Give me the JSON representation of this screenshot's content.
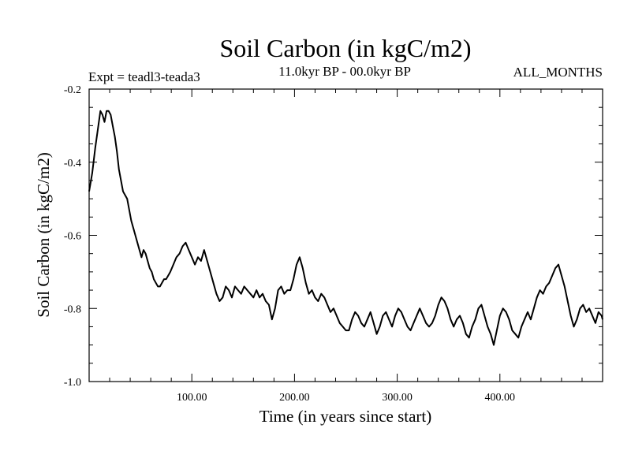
{
  "header": {
    "title": "Soil Carbon (in kgC/m2)",
    "experiment": "Expt = teadl3-teada3",
    "period": "11.0kyr BP - 00.0kyr BP",
    "season": "ALL_MONTHS"
  },
  "chart_data": {
    "type": "line",
    "title": "Soil Carbon (in kgC/m2)",
    "xlabel": "Time (in years since start)",
    "ylabel": "Soil Carbon (in kgC/m2)",
    "xlim": [
      0,
      500
    ],
    "ylim": [
      -1.0,
      -0.2
    ],
    "x_ticks": [
      100,
      200,
      300,
      400
    ],
    "x_tick_labels": [
      "100.00",
      "200.00",
      "300.00",
      "400.00"
    ],
    "y_ticks": [
      -1.0,
      -0.8,
      -0.6,
      -0.4,
      -0.2
    ],
    "y_tick_labels": [
      "-1.0",
      "-0.8",
      "-0.6",
      "-0.4",
      "-0.2"
    ],
    "grid": false,
    "line_color": "#000000",
    "series": [
      {
        "name": "Soil Carbon",
        "points": [
          [
            0,
            -0.48
          ],
          [
            3,
            -0.43
          ],
          [
            6,
            -0.36
          ],
          [
            9,
            -0.3
          ],
          [
            11,
            -0.26
          ],
          [
            13,
            -0.27
          ],
          [
            15,
            -0.29
          ],
          [
            17,
            -0.26
          ],
          [
            19,
            -0.26
          ],
          [
            21,
            -0.27
          ],
          [
            23,
            -0.3
          ],
          [
            25,
            -0.33
          ],
          [
            27,
            -0.37
          ],
          [
            29,
            -0.42
          ],
          [
            31,
            -0.45
          ],
          [
            33,
            -0.48
          ],
          [
            35,
            -0.49
          ],
          [
            37,
            -0.5
          ],
          [
            39,
            -0.53
          ],
          [
            41,
            -0.56
          ],
          [
            43,
            -0.58
          ],
          [
            45,
            -0.6
          ],
          [
            47,
            -0.62
          ],
          [
            49,
            -0.64
          ],
          [
            51,
            -0.66
          ],
          [
            53,
            -0.64
          ],
          [
            55,
            -0.65
          ],
          [
            57,
            -0.67
          ],
          [
            59,
            -0.69
          ],
          [
            61,
            -0.7
          ],
          [
            63,
            -0.72
          ],
          [
            65,
            -0.73
          ],
          [
            67,
            -0.74
          ],
          [
            69,
            -0.74
          ],
          [
            71,
            -0.73
          ],
          [
            73,
            -0.72
          ],
          [
            75,
            -0.72
          ],
          [
            77,
            -0.71
          ],
          [
            79,
            -0.7
          ],
          [
            82,
            -0.68
          ],
          [
            85,
            -0.66
          ],
          [
            88,
            -0.65
          ],
          [
            91,
            -0.63
          ],
          [
            94,
            -0.62
          ],
          [
            97,
            -0.64
          ],
          [
            100,
            -0.66
          ],
          [
            103,
            -0.68
          ],
          [
            106,
            -0.66
          ],
          [
            109,
            -0.67
          ],
          [
            112,
            -0.64
          ],
          [
            115,
            -0.67
          ],
          [
            118,
            -0.7
          ],
          [
            121,
            -0.73
          ],
          [
            124,
            -0.76
          ],
          [
            127,
            -0.78
          ],
          [
            130,
            -0.77
          ],
          [
            133,
            -0.74
          ],
          [
            136,
            -0.75
          ],
          [
            139,
            -0.77
          ],
          [
            142,
            -0.74
          ],
          [
            145,
            -0.75
          ],
          [
            148,
            -0.76
          ],
          [
            151,
            -0.74
          ],
          [
            154,
            -0.75
          ],
          [
            157,
            -0.76
          ],
          [
            160,
            -0.77
          ],
          [
            163,
            -0.75
          ],
          [
            166,
            -0.77
          ],
          [
            169,
            -0.76
          ],
          [
            172,
            -0.78
          ],
          [
            175,
            -0.79
          ],
          [
            178,
            -0.83
          ],
          [
            181,
            -0.8
          ],
          [
            184,
            -0.75
          ],
          [
            187,
            -0.74
          ],
          [
            190,
            -0.76
          ],
          [
            193,
            -0.75
          ],
          [
            196,
            -0.75
          ],
          [
            199,
            -0.72
          ],
          [
            202,
            -0.68
          ],
          [
            205,
            -0.66
          ],
          [
            208,
            -0.69
          ],
          [
            211,
            -0.73
          ],
          [
            214,
            -0.76
          ],
          [
            217,
            -0.75
          ],
          [
            220,
            -0.77
          ],
          [
            223,
            -0.78
          ],
          [
            226,
            -0.76
          ],
          [
            229,
            -0.77
          ],
          [
            232,
            -0.79
          ],
          [
            235,
            -0.81
          ],
          [
            238,
            -0.8
          ],
          [
            241,
            -0.82
          ],
          [
            244,
            -0.84
          ],
          [
            247,
            -0.85
          ],
          [
            250,
            -0.86
          ],
          [
            253,
            -0.86
          ],
          [
            256,
            -0.83
          ],
          [
            259,
            -0.81
          ],
          [
            262,
            -0.82
          ],
          [
            265,
            -0.84
          ],
          [
            268,
            -0.85
          ],
          [
            271,
            -0.83
          ],
          [
            274,
            -0.81
          ],
          [
            277,
            -0.84
          ],
          [
            280,
            -0.87
          ],
          [
            283,
            -0.85
          ],
          [
            286,
            -0.82
          ],
          [
            289,
            -0.81
          ],
          [
            292,
            -0.83
          ],
          [
            295,
            -0.85
          ],
          [
            298,
            -0.82
          ],
          [
            301,
            -0.8
          ],
          [
            304,
            -0.81
          ],
          [
            307,
            -0.83
          ],
          [
            310,
            -0.85
          ],
          [
            313,
            -0.86
          ],
          [
            316,
            -0.84
          ],
          [
            319,
            -0.82
          ],
          [
            322,
            -0.8
          ],
          [
            325,
            -0.82
          ],
          [
            328,
            -0.84
          ],
          [
            331,
            -0.85
          ],
          [
            334,
            -0.84
          ],
          [
            337,
            -0.82
          ],
          [
            340,
            -0.79
          ],
          [
            343,
            -0.77
          ],
          [
            346,
            -0.78
          ],
          [
            349,
            -0.8
          ],
          [
            352,
            -0.83
          ],
          [
            355,
            -0.85
          ],
          [
            358,
            -0.83
          ],
          [
            361,
            -0.82
          ],
          [
            364,
            -0.84
          ],
          [
            367,
            -0.87
          ],
          [
            370,
            -0.88
          ],
          [
            373,
            -0.85
          ],
          [
            376,
            -0.83
          ],
          [
            379,
            -0.8
          ],
          [
            382,
            -0.79
          ],
          [
            385,
            -0.82
          ],
          [
            388,
            -0.85
          ],
          [
            391,
            -0.87
          ],
          [
            394,
            -0.9
          ],
          [
            397,
            -0.86
          ],
          [
            400,
            -0.82
          ],
          [
            403,
            -0.8
          ],
          [
            406,
            -0.81
          ],
          [
            409,
            -0.83
          ],
          [
            412,
            -0.86
          ],
          [
            415,
            -0.87
          ],
          [
            418,
            -0.88
          ],
          [
            421,
            -0.85
          ],
          [
            424,
            -0.83
          ],
          [
            427,
            -0.81
          ],
          [
            430,
            -0.83
          ],
          [
            433,
            -0.8
          ],
          [
            436,
            -0.77
          ],
          [
            439,
            -0.75
          ],
          [
            442,
            -0.76
          ],
          [
            445,
            -0.74
          ],
          [
            448,
            -0.73
          ],
          [
            451,
            -0.71
          ],
          [
            454,
            -0.69
          ],
          [
            457,
            -0.68
          ],
          [
            460,
            -0.71
          ],
          [
            463,
            -0.74
          ],
          [
            466,
            -0.78
          ],
          [
            469,
            -0.82
          ],
          [
            472,
            -0.85
          ],
          [
            475,
            -0.83
          ],
          [
            478,
            -0.8
          ],
          [
            481,
            -0.79
          ],
          [
            484,
            -0.81
          ],
          [
            487,
            -0.8
          ],
          [
            490,
            -0.82
          ],
          [
            493,
            -0.84
          ],
          [
            496,
            -0.81
          ],
          [
            499,
            -0.82
          ],
          [
            500,
            -0.83
          ]
        ]
      }
    ]
  }
}
